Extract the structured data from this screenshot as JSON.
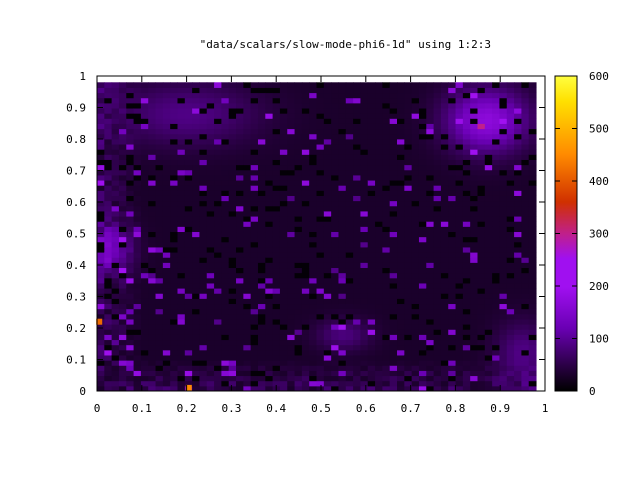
{
  "chart_data": {
    "type": "heatmap",
    "title": "\"data/scalars/slow-mode-phi6-1d\" using 1:2:3",
    "xlabel": "",
    "ylabel": "",
    "xlim": [
      0,
      1
    ],
    "ylim": [
      0,
      1
    ],
    "x_ticks": [
      "0",
      "0.1",
      "0.2",
      "0.3",
      "0.4",
      "0.5",
      "0.6",
      "0.7",
      "0.8",
      "0.9",
      "1"
    ],
    "y_ticks": [
      "0",
      "0.1",
      "0.2",
      "0.3",
      "0.4",
      "0.5",
      "0.6",
      "0.7",
      "0.8",
      "0.9",
      "1"
    ],
    "colorbar": {
      "range": [
        0,
        600
      ],
      "ticks": [
        "0",
        "100",
        "200",
        "300",
        "400",
        "500",
        "600"
      ],
      "palette": [
        "#000000",
        "#2a0044",
        "#6a00b4",
        "#a010f0",
        "#c0208a",
        "#d03000",
        "#ff8a00",
        "#ffe000",
        "#ffff40"
      ]
    },
    "data_extent": {
      "x": [
        0,
        0.98
      ],
      "y": [
        0,
        0.98
      ]
    },
    "background_value": 30,
    "features": [
      {
        "kind": "blob",
        "x": 0.87,
        "y": 0.86,
        "rx": 0.09,
        "ry": 0.1,
        "value": 140
      },
      {
        "kind": "blob",
        "x": 0.95,
        "y": 0.12,
        "rx": 0.06,
        "ry": 0.1,
        "value": 60
      },
      {
        "kind": "blob",
        "x": 0.55,
        "y": 0.18,
        "rx": 0.06,
        "ry": 0.05,
        "value": 55
      },
      {
        "kind": "blob",
        "x": 0.2,
        "y": 0.88,
        "rx": 0.16,
        "ry": 0.1,
        "value": 60
      },
      {
        "kind": "blob",
        "x": 0.03,
        "y": 0.45,
        "rx": 0.05,
        "ry": 0.08,
        "value": 90
      }
    ],
    "hotspots": [
      {
        "x": 0.005,
        "y": 0.22,
        "value": 420
      },
      {
        "x": 0.205,
        "y": 0.01,
        "value": 450
      }
    ]
  }
}
